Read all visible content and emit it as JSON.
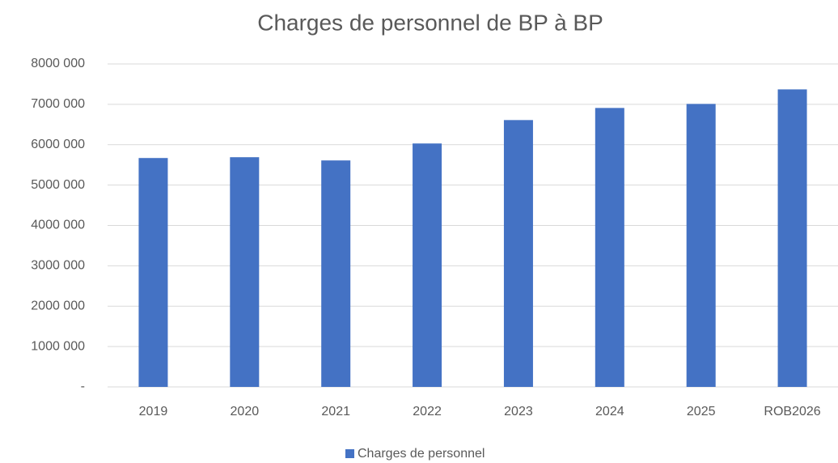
{
  "chart_data": {
    "type": "bar",
    "title": "Charges de personnel de BP à BP",
    "categories": [
      "2019",
      "2020",
      "2021",
      "2022",
      "2023",
      "2024",
      "2025",
      "ROB2026"
    ],
    "series": [
      {
        "name": "Charges de personnel",
        "color": "#4472c4",
        "values": [
          5670000,
          5690000,
          5610000,
          6030000,
          6610000,
          6910000,
          7010000,
          7370000
        ]
      }
    ],
    "ylim": [
      0,
      8000000
    ],
    "yticks": [
      {
        "value": 0,
        "label": "-"
      },
      {
        "value": 1000000,
        "label": "1000 000"
      },
      {
        "value": 2000000,
        "label": "2000 000"
      },
      {
        "value": 3000000,
        "label": "3000 000"
      },
      {
        "value": 4000000,
        "label": "4000 000"
      },
      {
        "value": 5000000,
        "label": "5000 000"
      },
      {
        "value": 6000000,
        "label": "6000 000"
      },
      {
        "value": 7000000,
        "label": "7000 000"
      },
      {
        "value": 8000000,
        "label": "8000 000"
      }
    ],
    "grid": true,
    "legend": "bottom"
  }
}
